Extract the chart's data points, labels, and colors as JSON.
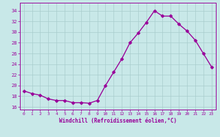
{
  "x": [
    0,
    1,
    2,
    3,
    4,
    5,
    6,
    7,
    8,
    9,
    10,
    11,
    12,
    13,
    14,
    15,
    16,
    17,
    18,
    19,
    20,
    21,
    22,
    23
  ],
  "y": [
    19.0,
    18.5,
    18.2,
    17.5,
    17.2,
    17.2,
    16.8,
    16.8,
    16.7,
    17.2,
    20.0,
    22.5,
    25.0,
    28.0,
    29.8,
    31.8,
    34.0,
    33.0,
    33.0,
    31.5,
    30.2,
    28.5,
    26.0,
    23.5
  ],
  "line_color": "#990099",
  "marker": "D",
  "marker_size": 2.5,
  "bg_color": "#c8e8e8",
  "grid_color": "#a8cccc",
  "xlabel": "Windchill (Refroidissement éolien,°C)",
  "ylim": [
    15.5,
    35.5
  ],
  "yticks": [
    16,
    18,
    20,
    22,
    24,
    26,
    28,
    30,
    32,
    34
  ],
  "xticks": [
    0,
    1,
    2,
    3,
    4,
    5,
    6,
    7,
    8,
    9,
    10,
    11,
    12,
    13,
    14,
    15,
    16,
    17,
    18,
    19,
    20,
    21,
    22,
    23
  ],
  "tick_color": "#990099",
  "label_color": "#990099",
  "spine_color": "#990099",
  "xlim": [
    -0.5,
    23.5
  ]
}
